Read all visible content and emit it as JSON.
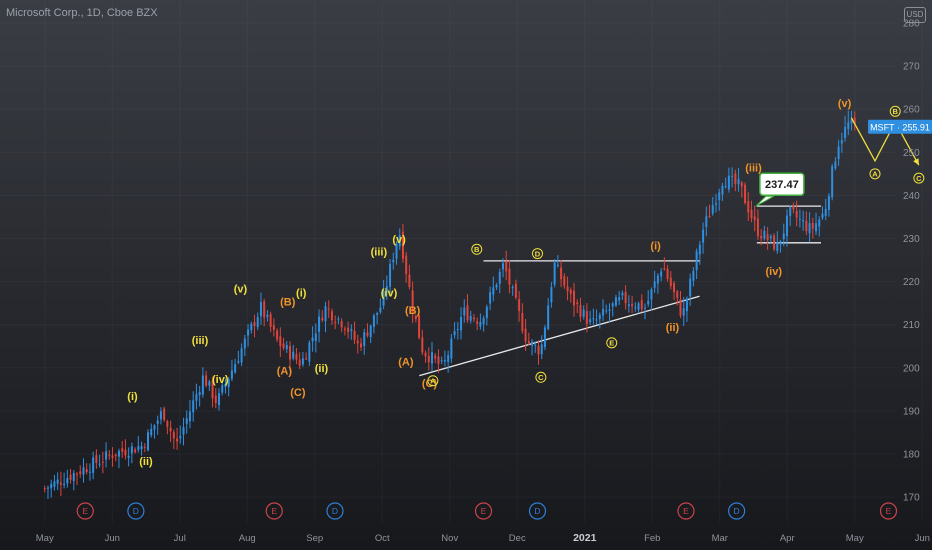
{
  "header": {
    "title": "Microsoft Corp., 1D, Cboe BZX",
    "currency_badge": "USD"
  },
  "colors": {
    "up": "#2f8fe0",
    "down": "#e0443a",
    "yellow": "#f1e03a",
    "orange": "#f0942a",
    "line": "#ffffff",
    "price_badge": "#2f8fe0",
    "annotation_box": "#3fae3a",
    "event_e": "#c9444a",
    "event_d": "#2e7fd6"
  },
  "chart_data": {
    "type": "candlestick",
    "symbol": "MSFT",
    "last_price_label": "MSFT · 255.91",
    "last_price": 255.91,
    "annotation_value": "237.47",
    "y_axis": {
      "min": 164,
      "max": 283,
      "ticks": [
        170,
        180,
        190,
        200,
        210,
        220,
        230,
        240,
        250,
        260,
        270,
        280
      ]
    },
    "x_axis": {
      "months": [
        "May",
        "Jun",
        "Jul",
        "Aug",
        "Sep",
        "Oct",
        "Nov",
        "Dec",
        "2021",
        "Feb",
        "Mar",
        "Apr",
        "May",
        "Jun"
      ]
    },
    "anchors": [
      {
        "t": 0,
        "p": 172
      },
      {
        "t": 1.0,
        "p": 180
      },
      {
        "t": 1.45,
        "p": 182
      },
      {
        "t": 1.75,
        "p": 190
      },
      {
        "t": 1.95,
        "p": 182
      },
      {
        "t": 2.35,
        "p": 198
      },
      {
        "t": 2.55,
        "p": 192
      },
      {
        "t": 3.2,
        "p": 214
      },
      {
        "t": 3.45,
        "p": 206
      },
      {
        "t": 3.8,
        "p": 201
      },
      {
        "t": 4.15,
        "p": 214
      },
      {
        "t": 4.45,
        "p": 210
      },
      {
        "t": 4.65,
        "p": 205
      },
      {
        "t": 5.0,
        "p": 215
      },
      {
        "t": 5.25,
        "p": 232
      },
      {
        "t": 5.45,
        "p": 214
      },
      {
        "t": 5.6,
        "p": 204
      },
      {
        "t": 5.9,
        "p": 200
      },
      {
        "t": 6.2,
        "p": 213
      },
      {
        "t": 6.45,
        "p": 211
      },
      {
        "t": 6.8,
        "p": 224
      },
      {
        "t": 7.15,
        "p": 206
      },
      {
        "t": 7.35,
        "p": 204
      },
      {
        "t": 7.55,
        "p": 224
      },
      {
        "t": 7.8,
        "p": 216
      },
      {
        "t": 8.1,
        "p": 210
      },
      {
        "t": 8.55,
        "p": 216
      },
      {
        "t": 8.9,
        "p": 214
      },
      {
        "t": 9.15,
        "p": 224
      },
      {
        "t": 9.45,
        "p": 212
      },
      {
        "t": 9.75,
        "p": 232
      },
      {
        "t": 10.05,
        "p": 244
      },
      {
        "t": 10.3,
        "p": 242
      },
      {
        "t": 10.55,
        "p": 232
      },
      {
        "t": 10.85,
        "p": 228
      },
      {
        "t": 11.05,
        "p": 236
      },
      {
        "t": 11.35,
        "p": 232
      },
      {
        "t": 11.55,
        "p": 236
      },
      {
        "t": 11.75,
        "p": 252
      },
      {
        "t": 11.9,
        "p": 256.5
      },
      {
        "t": 12.0,
        "p": 255.9
      }
    ],
    "trendlines": [
      {
        "name": "triangle-upper",
        "from": {
          "t": 6.5,
          "p": 224.8
        },
        "to": {
          "t": 9.7,
          "p": 224.8
        }
      },
      {
        "name": "triangle-lower",
        "from": {
          "t": 5.55,
          "p": 198.2
        },
        "to": {
          "t": 9.7,
          "p": 216.6
        }
      },
      {
        "name": "range-upper",
        "from": {
          "t": 10.55,
          "p": 237.5
        },
        "to": {
          "t": 11.5,
          "p": 237.5
        }
      },
      {
        "name": "range-lower",
        "from": {
          "t": 10.55,
          "p": 229
        },
        "to": {
          "t": 11.5,
          "p": 229
        }
      }
    ],
    "projection": [
      {
        "t": 11.95,
        "p": 258
      },
      {
        "t": 12.3,
        "p": 248
      },
      {
        "t": 12.6,
        "p": 257
      },
      {
        "t": 12.95,
        "p": 247
      }
    ],
    "wave_labels": [
      {
        "text": "(i)",
        "style": "yellow",
        "t": 1.3,
        "p": 192.5
      },
      {
        "text": "(ii)",
        "style": "yellow",
        "t": 1.5,
        "p": 177.5
      },
      {
        "text": "(iii)",
        "style": "yellow",
        "t": 2.3,
        "p": 205.5
      },
      {
        "text": "(iv)",
        "style": "yellow",
        "t": 2.6,
        "p": 196.5
      },
      {
        "text": "(v)",
        "style": "yellow",
        "t": 2.9,
        "p": 217.5
      },
      {
        "text": "(A)",
        "style": "orange",
        "t": 3.55,
        "p": 198.5
      },
      {
        "text": "(B)",
        "style": "orange",
        "t": 3.6,
        "p": 214.5
      },
      {
        "text": "(C)",
        "style": "orange",
        "t": 3.75,
        "p": 193.5
      },
      {
        "text": "(i)",
        "style": "yellow",
        "t": 3.8,
        "p": 216.5
      },
      {
        "text": "(ii)",
        "style": "yellow",
        "t": 4.1,
        "p": 199.0
      },
      {
        "text": "(iii)",
        "style": "yellow",
        "t": 4.95,
        "p": 226.0
      },
      {
        "text": "(iv)",
        "style": "yellow",
        "t": 5.1,
        "p": 216.5
      },
      {
        "text": "(v)",
        "style": "yellow",
        "t": 5.25,
        "p": 229.0
      },
      {
        "text": "(A)",
        "style": "orange",
        "t": 5.35,
        "p": 200.5
      },
      {
        "text": "(B)",
        "style": "orange",
        "t": 5.45,
        "p": 212.5
      },
      {
        "text": "(C)",
        "style": "orange",
        "t": 5.7,
        "p": 195.5
      },
      {
        "text": "(i)",
        "style": "orange",
        "t": 9.05,
        "p": 227.5
      },
      {
        "text": "(ii)",
        "style": "orange",
        "t": 9.3,
        "p": 208.5
      },
      {
        "text": "(iii)",
        "style": "orange",
        "t": 10.5,
        "p": 245.5
      },
      {
        "text": "(iv)",
        "style": "orange",
        "t": 10.8,
        "p": 221.5
      },
      {
        "text": "(v)",
        "style": "orange",
        "t": 11.85,
        "p": 260.5
      }
    ],
    "circle_labels": [
      {
        "text": "A",
        "t": 5.75,
        "p": 197.0
      },
      {
        "text": "B",
        "t": 6.4,
        "p": 227.5
      },
      {
        "text": "D",
        "t": 7.3,
        "p": 226.5
      },
      {
        "text": "C",
        "t": 7.35,
        "p": 197.8
      },
      {
        "text": "E",
        "t": 8.4,
        "p": 205.8
      },
      {
        "text": "A",
        "t": 12.3,
        "p": 245.0
      },
      {
        "text": "B",
        "t": 12.6,
        "p": 259.5
      },
      {
        "text": "C",
        "t": 12.95,
        "p": 244.0
      }
    ],
    "events": [
      {
        "type": "E",
        "t": 0.6
      },
      {
        "type": "D",
        "t": 1.35
      },
      {
        "type": "E",
        "t": 3.4
      },
      {
        "type": "D",
        "t": 4.3
      },
      {
        "type": "E",
        "t": 6.5
      },
      {
        "type": "D",
        "t": 7.3
      },
      {
        "type": "E",
        "t": 9.5
      },
      {
        "type": "D",
        "t": 10.25
      },
      {
        "type": "E",
        "t": 12.5
      }
    ]
  }
}
